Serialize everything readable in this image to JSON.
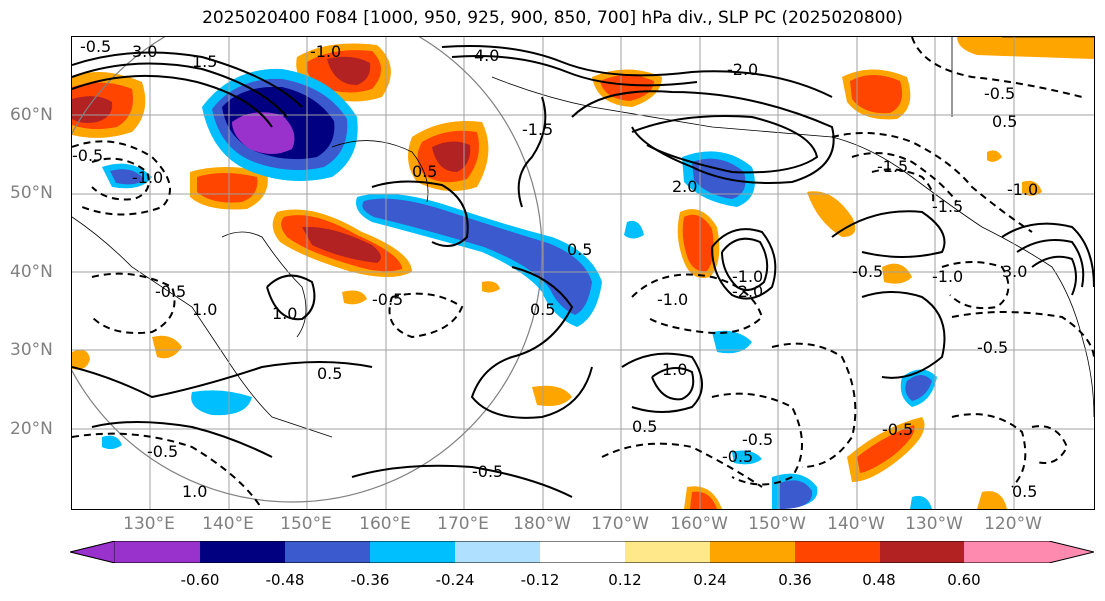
{
  "title": "2025020400 F084 [1000, 950, 925, 900, 850, 700] hPa div., SLP PC (2025020800)",
  "latitude_labels": [
    "60°N",
    "50°N",
    "40°N",
    "30°N",
    "20°N"
  ],
  "longitude_labels": [
    "130°E",
    "140°E",
    "150°E",
    "160°E",
    "170°E",
    "180°W",
    "170°W",
    "160°W",
    "150°W",
    "140°W",
    "130°W",
    "120°W"
  ],
  "contour_labels": [
    "-0.5",
    "3.0",
    "4.0",
    "-1.0",
    "-2.0",
    "-1.5",
    "-0.5",
    "-1.0",
    "0.5",
    "-1.5",
    "2.0",
    "0.5",
    "-1.0",
    "1.0",
    "-0.5",
    "0.5",
    "0.5",
    "-1.0",
    "1.5",
    "-0.5",
    "1.0",
    "0.5",
    "-0.5",
    "-0.5",
    "-1.5",
    "-1.0",
    "0.5",
    "-0.5",
    "1.0",
    "-0.5",
    "-0.5",
    "3.0",
    "-0.5",
    "-1.0",
    "-2.0",
    "-0.5",
    "1.0",
    "-0.5",
    "0.5"
  ],
  "colorbar": {
    "colors": [
      "#9932cc",
      "#000080",
      "#3a5acd",
      "#00bfff",
      "#b0e0ff",
      "#ffffff",
      "#ffe88a",
      "#ffa500",
      "#ff4500",
      "#b22222",
      "#ff8ab0",
      "#ff8ab0"
    ],
    "tick_labels": [
      "-0.60",
      "-0.48",
      "-0.36",
      "-0.24",
      "-0.12",
      "0.12",
      "0.24",
      "0.36",
      "0.48",
      "0.60"
    ]
  }
}
